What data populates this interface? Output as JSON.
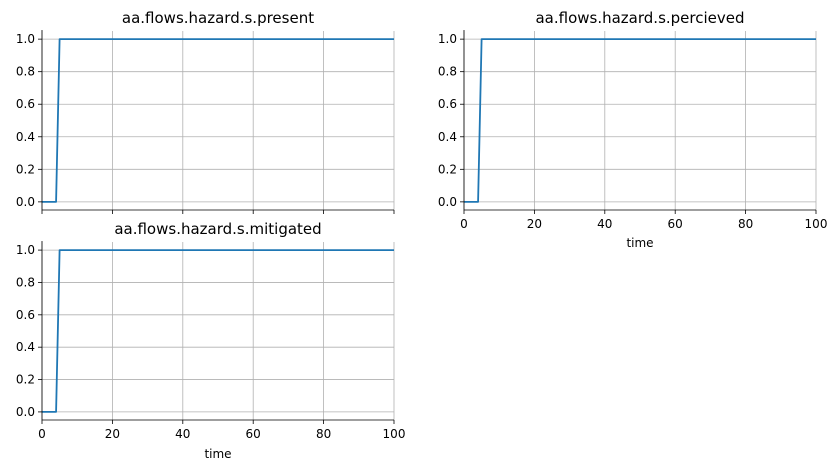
{
  "chart_data": [
    {
      "type": "line",
      "title": "aa.flows.hazard.s.present",
      "xlabel": "",
      "ylabel": "",
      "xlim": [
        0,
        100
      ],
      "ylim": [
        -0.05,
        1.05
      ],
      "x_ticks": [
        0,
        20,
        40,
        60,
        80,
        100
      ],
      "x_tick_labels_shown": false,
      "y_ticks": [
        0.0,
        0.2,
        0.4,
        0.6,
        0.8,
        1.0
      ],
      "y_tick_labels": [
        "0.0",
        "0.2",
        "0.4",
        "0.6",
        "0.8",
        "1.0"
      ],
      "grid": true,
      "series": [
        {
          "color": "#1f77b4",
          "x": [
            0,
            4,
            5,
            100
          ],
          "y": [
            0,
            0,
            1,
            1
          ]
        }
      ]
    },
    {
      "type": "line",
      "title": "aa.flows.hazard.s.percieved",
      "xlabel": "time",
      "ylabel": "",
      "xlim": [
        0,
        100
      ],
      "ylim": [
        -0.05,
        1.05
      ],
      "x_ticks": [
        0,
        20,
        40,
        60,
        80,
        100
      ],
      "x_tick_labels": [
        "0",
        "20",
        "40",
        "60",
        "80",
        "100"
      ],
      "x_tick_labels_shown": true,
      "y_ticks": [
        0.0,
        0.2,
        0.4,
        0.6,
        0.8,
        1.0
      ],
      "y_tick_labels": [
        "0.0",
        "0.2",
        "0.4",
        "0.6",
        "0.8",
        "1.0"
      ],
      "grid": true,
      "series": [
        {
          "color": "#1f77b4",
          "x": [
            0,
            4,
            5,
            100
          ],
          "y": [
            0,
            0,
            1,
            1
          ]
        }
      ]
    },
    {
      "type": "line",
      "title": "aa.flows.hazard.s.mitigated",
      "xlabel": "time",
      "ylabel": "",
      "xlim": [
        0,
        100
      ],
      "ylim": [
        -0.05,
        1.05
      ],
      "x_ticks": [
        0,
        20,
        40,
        60,
        80,
        100
      ],
      "x_tick_labels": [
        "0",
        "20",
        "40",
        "60",
        "80",
        "100"
      ],
      "x_tick_labels_shown": true,
      "y_ticks": [
        0.0,
        0.2,
        0.4,
        0.6,
        0.8,
        1.0
      ],
      "y_tick_labels": [
        "0.0",
        "0.2",
        "0.4",
        "0.6",
        "0.8",
        "1.0"
      ],
      "grid": true,
      "series": [
        {
          "color": "#1f77b4",
          "x": [
            0,
            4,
            5,
            100
          ],
          "y": [
            0,
            0,
            1,
            1
          ]
        }
      ]
    }
  ]
}
